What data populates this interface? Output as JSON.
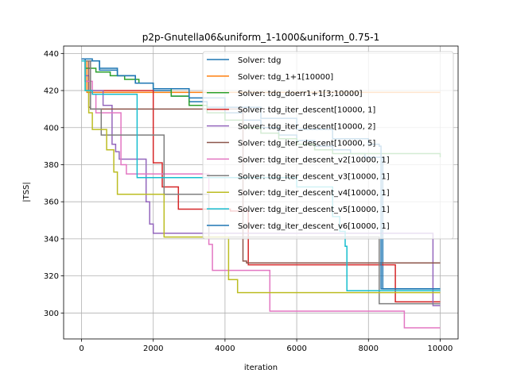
{
  "chart_data": {
    "type": "line",
    "title": "p2p-Gnutella06&uniform_1-1000&uniform_0.75-1",
    "xlabel": "iteration",
    "ylabel": "|TSS|",
    "xlim": [
      -500,
      10500
    ],
    "ylim": [
      286,
      444
    ],
    "xticks": [
      0,
      2000,
      4000,
      6000,
      8000,
      10000
    ],
    "yticks": [
      300,
      320,
      340,
      360,
      380,
      400,
      420,
      440
    ],
    "grid": true,
    "legend_position": "top-right",
    "series": [
      {
        "name": "Solver: tdg",
        "color": "#1f77b4",
        "x": [
          0,
          100,
          500,
          1000,
          1500,
          2000,
          2500,
          3000,
          3500,
          4000,
          4500,
          5000,
          5500,
          6000,
          6500,
          7000,
          7500,
          7900,
          8400,
          10000
        ],
        "y": [
          437,
          436,
          432,
          428,
          424,
          420,
          417,
          414,
          411,
          408,
          404,
          400,
          396,
          393,
          390,
          388,
          386,
          384,
          313,
          313
        ]
      },
      {
        "name": "Solver: tdg_1+1[10000]",
        "color": "#ff7f0e",
        "x": [
          0,
          150,
          10000
        ],
        "y": [
          436,
          419,
          419
        ]
      },
      {
        "name": "Solver: tdg_doerr1+1[3;10000]",
        "color": "#2ca02c",
        "x": [
          0,
          100,
          400,
          800,
          1200,
          1600,
          2000,
          2500,
          3000,
          3500,
          4000,
          4500,
          5000,
          5500,
          6000,
          6500,
          7000,
          10000
        ],
        "y": [
          436,
          432,
          430,
          428,
          426,
          424,
          421,
          417,
          412,
          408,
          404,
          400,
          397,
          394,
          391,
          388,
          386,
          384
        ]
      },
      {
        "name": "Solver: tdg_iter_descent[10000, 1]",
        "color": "#d62728",
        "x": [
          0,
          100,
          250,
          1500,
          2000,
          2250,
          2700,
          4150,
          4650,
          8750,
          10000
        ],
        "y": [
          436,
          425,
          420,
          420,
          381,
          368,
          356,
          355,
          326,
          306,
          306
        ]
      },
      {
        "name": "Solver: tdg_iter_descent[10000, 2]",
        "color": "#9467bd",
        "x": [
          0,
          100,
          200,
          600,
          850,
          950,
          1050,
          1800,
          1900,
          2000,
          2200,
          4000,
          9800,
          10000
        ],
        "y": [
          436,
          428,
          420,
          412,
          391,
          387,
          383,
          360,
          348,
          343,
          343,
          343,
          304,
          304
        ]
      },
      {
        "name": "Solver: tdg_iter_descent[10000, 5]",
        "color": "#8c564b",
        "x": [
          0,
          200,
          250,
          3600,
          4500,
          4600,
          10000
        ],
        "y": [
          436,
          411,
          410,
          410,
          328,
          327,
          327
        ]
      },
      {
        "name": "Solver: tdg_iter_descent_v2[10000, 1]",
        "color": "#e377c2",
        "x": [
          0,
          100,
          300,
          400,
          1100,
          1250,
          3500,
          3550,
          3650,
          4700,
          5250,
          9000,
          10000
        ],
        "y": [
          436,
          425,
          418,
          408,
          380,
          375,
          375,
          337,
          323,
          323,
          301,
          292,
          292
        ]
      },
      {
        "name": "Solver: tdg_iter_descent_v3[10000, 1]",
        "color": "#7f7f7f",
        "x": [
          0,
          250,
          550,
          1800,
          2300,
          3500,
          3550,
          7800,
          8300,
          10000
        ],
        "y": [
          436,
          410,
          396,
          396,
          364,
          364,
          341,
          341,
          305,
          305
        ]
      },
      {
        "name": "Solver: tdg_iter_descent_v4[10000, 1]",
        "color": "#bcbd22",
        "x": [
          0,
          100,
          200,
          300,
          700,
          900,
          1000,
          1950,
          2300,
          4100,
          4350,
          10000
        ],
        "y": [
          436,
          420,
          408,
          399,
          388,
          376,
          364,
          364,
          341,
          318,
          311,
          311
        ]
      },
      {
        "name": "Solver: tdg_iter_descent_v5[10000, 1]",
        "color": "#17becf",
        "x": [
          0,
          100,
          300,
          1500,
          1550,
          2500,
          6000,
          7000,
          7200,
          7350,
          7400,
          10000
        ],
        "y": [
          436,
          420,
          418,
          418,
          373,
          373,
          368,
          352,
          344,
          336,
          312,
          312
        ]
      },
      {
        "name": "Solver: tdg_iter_descent_v6[10000, 1]",
        "color": "#1f77b4",
        "x": [
          0,
          300,
          500,
          1000,
          1500,
          2000,
          3000,
          4000,
          5000,
          6000,
          7000,
          8000,
          8300,
          8350,
          10000
        ],
        "y": [
          437,
          436,
          431,
          428,
          424,
          421,
          416,
          411,
          405,
          399,
          394,
          391,
          390,
          313,
          313
        ]
      }
    ]
  }
}
